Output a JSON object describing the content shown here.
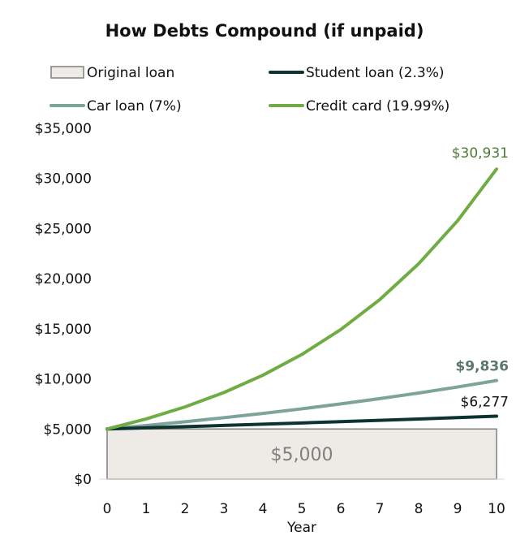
{
  "chart_data": {
    "type": "line",
    "title": "How Debts Compound (if unpaid)",
    "xlabel": "Year",
    "ylabel": "",
    "x": [
      0,
      1,
      2,
      3,
      4,
      5,
      6,
      7,
      8,
      9,
      10
    ],
    "ylim": [
      0,
      35000
    ],
    "yticks": [
      "$0",
      "$5,000",
      "$10,000",
      "$15,000",
      "$20,000",
      "$25,000",
      "$30,000",
      "$35,000"
    ],
    "ytick_values": [
      0,
      5000,
      10000,
      15000,
      20000,
      25000,
      30000,
      35000
    ],
    "grid": false,
    "legend_position": "top",
    "baseline": {
      "name": "Original loan",
      "value": 5000,
      "label": "$5,000",
      "color": "#eeebe6",
      "border": "#7f7f7f",
      "label_color": "#7f7f7f"
    },
    "series": [
      {
        "name": "Student loan (2.3%)",
        "color": "#0d3330",
        "label_color": "#111111",
        "end_label": "$6,277",
        "values": [
          5000,
          5115,
          5233,
          5353,
          5476,
          5602,
          5731,
          5863,
          5998,
          6136,
          6277
        ]
      },
      {
        "name": "Car loan (7%)",
        "color": "#7da39a",
        "label_color": "#5a766f",
        "end_label": "$9,836",
        "values": [
          5000,
          5350,
          5725,
          6125,
          6554,
          7013,
          7504,
          8029,
          8591,
          9192,
          9836
        ]
      },
      {
        "name": "Credit card (19.99%)",
        "color": "#6fad44",
        "label_color": "#4f7a33",
        "end_label": "$30,931",
        "values": [
          5000,
          6000,
          7199,
          8638,
          10365,
          12436,
          14923,
          17906,
          21485,
          25780,
          30931
        ]
      }
    ]
  }
}
